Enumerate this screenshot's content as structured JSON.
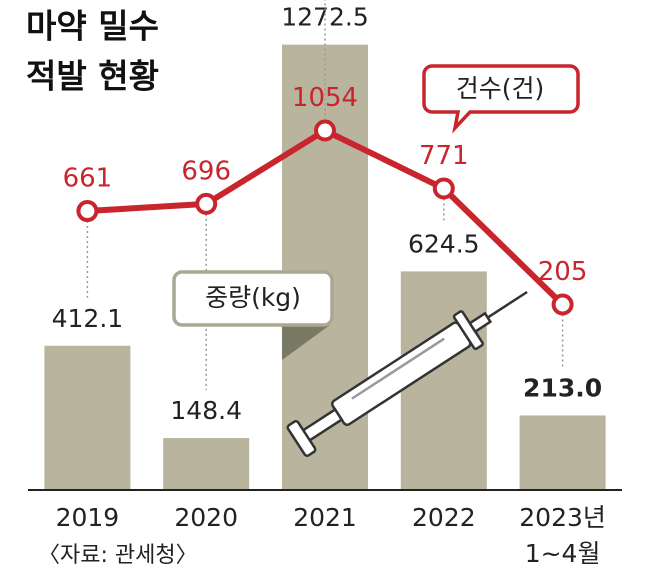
{
  "chart_data": {
    "type": "combo",
    "title": [
      "마약 밀수",
      "적발 현황"
    ],
    "source": "〈자료: 관세청〉",
    "categories": [
      "2019",
      "2020",
      "2021",
      "2022",
      "2023년\n1~4월"
    ],
    "ylim": [
      0,
      1300
    ],
    "y2lim": [
      -700,
      1520
    ],
    "series": [
      {
        "name": "중량(kg)",
        "type": "bar",
        "color": "#b8b49e",
        "values": [
          412.1,
          148.4,
          1272.5,
          624.5,
          213.0
        ],
        "value_labels": [
          "412.1",
          "148.4",
          "1272.5",
          "624.5",
          "213.0"
        ]
      },
      {
        "name": "건수(건)",
        "type": "line",
        "axis": "y2",
        "color": "#c8252d",
        "values": [
          661,
          696,
          1054,
          771,
          205
        ]
      }
    ]
  }
}
